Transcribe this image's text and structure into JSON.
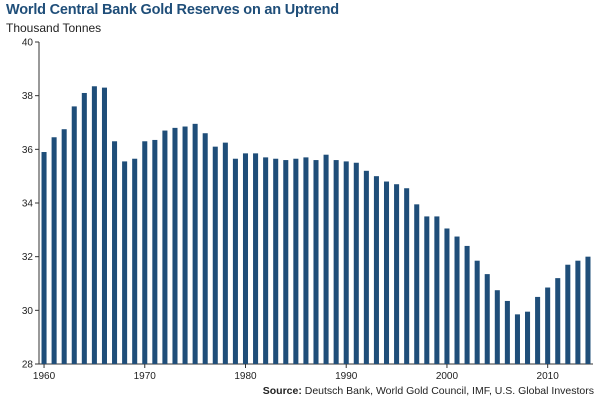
{
  "chart_data": {
    "type": "bar",
    "title": "World Central Bank Gold Reserves on an Uptrend",
    "ylabel": "Thousand Tonnes",
    "xlabel": "",
    "ylim": [
      28,
      40
    ],
    "yticks": [
      28,
      30,
      32,
      34,
      36,
      38,
      40
    ],
    "xticks": [
      1960,
      1970,
      1980,
      1990,
      2000,
      2010
    ],
    "grid": false,
    "color": "#1f4e79",
    "x": [
      1960,
      1961,
      1962,
      1963,
      1964,
      1965,
      1966,
      1967,
      1968,
      1969,
      1970,
      1971,
      1972,
      1973,
      1974,
      1975,
      1976,
      1977,
      1978,
      1979,
      1980,
      1981,
      1982,
      1983,
      1984,
      1985,
      1986,
      1987,
      1988,
      1989,
      1990,
      1991,
      1992,
      1993,
      1994,
      1995,
      1996,
      1997,
      1998,
      1999,
      2000,
      2001,
      2002,
      2003,
      2004,
      2005,
      2006,
      2007,
      2008,
      2009,
      2010,
      2011,
      2012,
      2013,
      2014
    ],
    "values": [
      35.9,
      36.45,
      36.75,
      37.6,
      38.1,
      38.35,
      38.3,
      36.3,
      35.55,
      35.65,
      36.3,
      36.35,
      36.7,
      36.8,
      36.85,
      36.95,
      36.6,
      36.1,
      36.25,
      35.65,
      35.85,
      35.85,
      35.7,
      35.65,
      35.6,
      35.65,
      35.7,
      35.6,
      35.8,
      35.6,
      35.55,
      35.5,
      35.2,
      35.0,
      34.8,
      34.7,
      34.55,
      33.95,
      33.5,
      33.5,
      33.05,
      32.75,
      32.4,
      31.85,
      31.35,
      30.75,
      30.35,
      29.85,
      29.95,
      30.5,
      30.85,
      31.2,
      31.7,
      31.85,
      32.0
    ]
  },
  "source_label": "Source:",
  "source_text": " Deutsch Bank, World Gold Council, IMF, U.S. Global Investors"
}
